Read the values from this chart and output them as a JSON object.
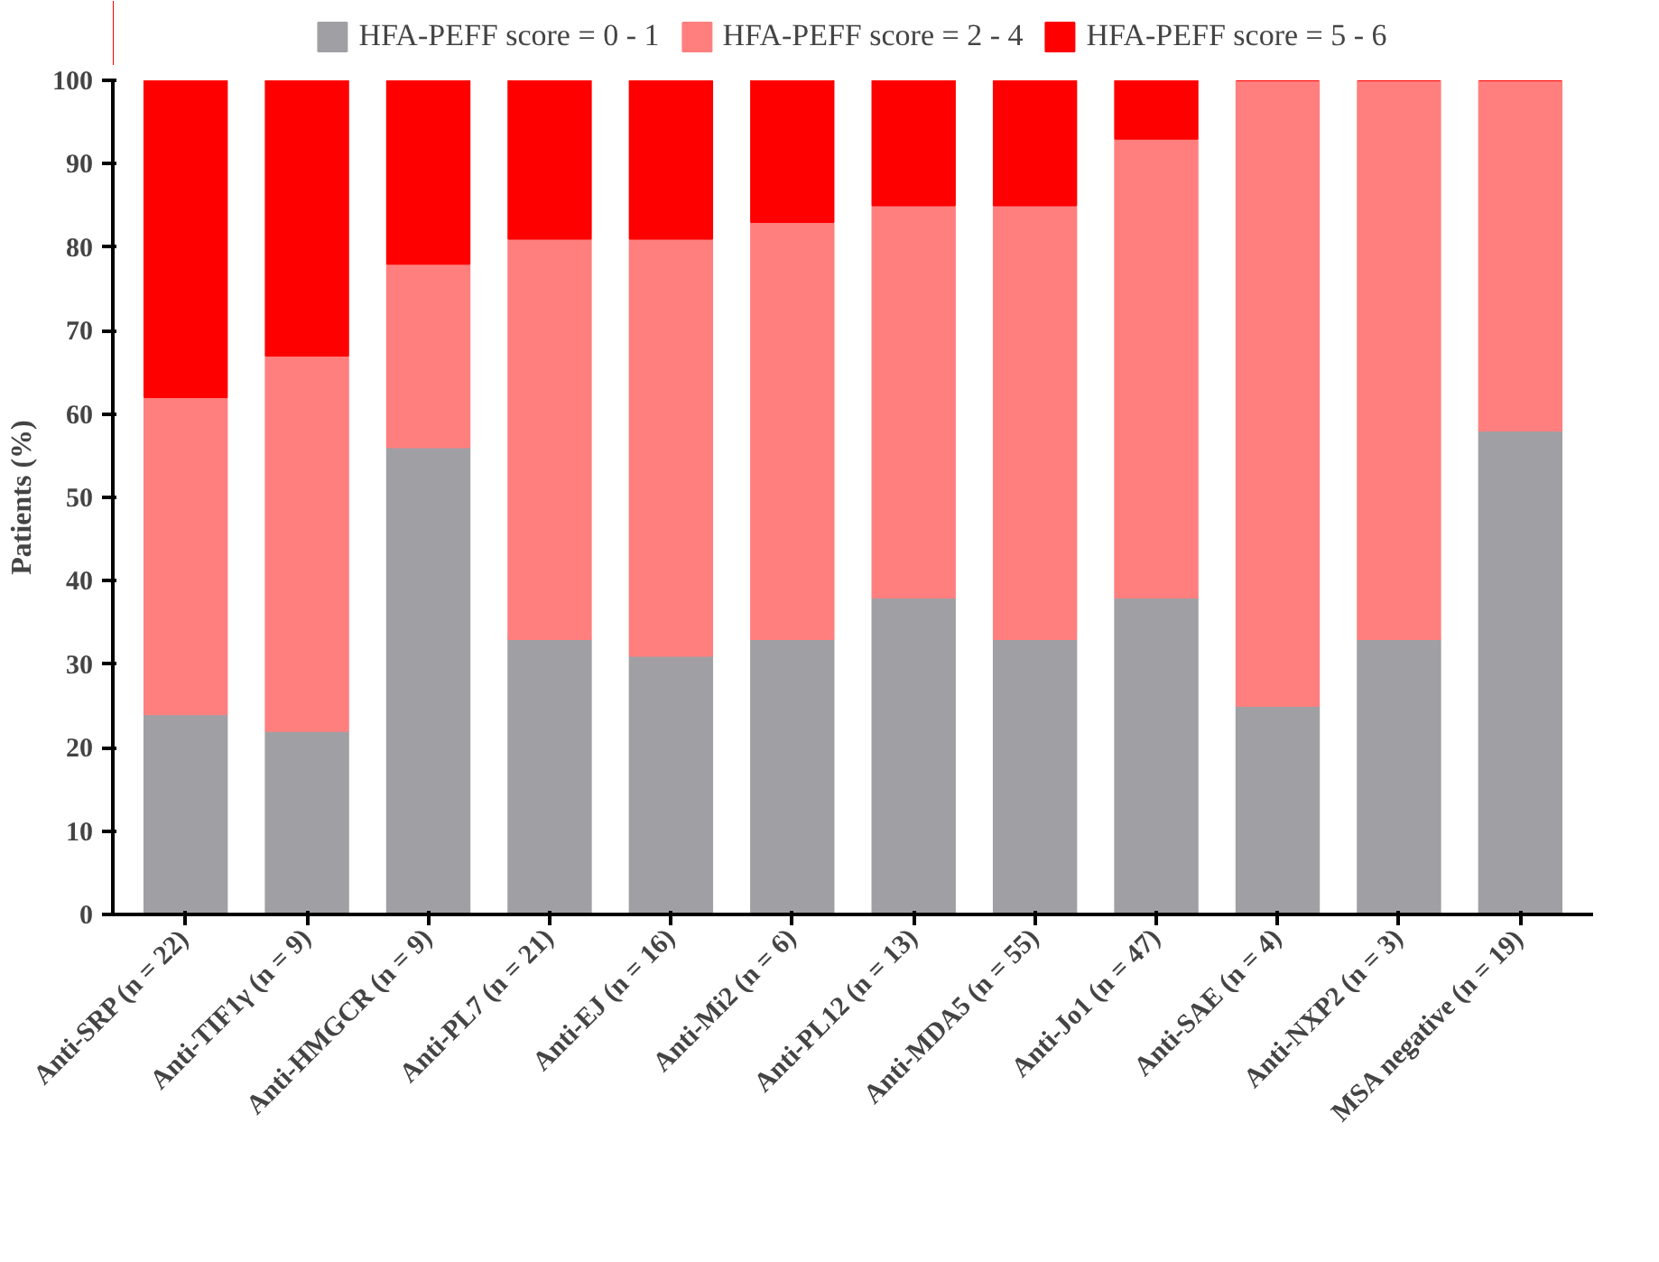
{
  "chart_data": {
    "type": "bar",
    "stacked": true,
    "ylabel": "Patients (%)",
    "categories": [
      "Anti-SRP (n = 22)",
      "Anti-TIF1γ (n = 9)",
      "Anti-HMGCR (n = 9)",
      "Anti-PL7 (n = 21)",
      "Anti-EJ (n = 16)",
      "Anti-Mi2 (n = 6)",
      "Anti-PL12 (n = 13)",
      "Anti-MDA5 (n = 55)",
      "Anti-Jo1 (n = 47)",
      "Anti-SAE (n = 4)",
      "Anti-NXP2 (n = 3)",
      "MSA negative (n = 19)"
    ],
    "series": [
      {
        "name": "HFA-PEFF score = 0 - 1",
        "color": "#a0a0a4",
        "values": [
          24,
          22,
          56,
          33,
          31,
          33,
          38,
          33,
          38,
          25,
          33,
          58
        ]
      },
      {
        "name": "HFA-PEFF score = 2 - 4",
        "color": "#ff7f7f",
        "values": [
          38,
          45,
          22,
          48,
          50,
          50,
          47,
          52,
          55,
          75,
          67,
          42
        ]
      },
      {
        "name": "HFA-PEFF score = 5 - 6",
        "color": "#ff0000",
        "values": [
          38,
          33,
          22,
          19,
          19,
          17,
          15,
          15,
          7,
          0,
          0,
          0
        ]
      }
    ],
    "ylim": [
      0,
      100
    ],
    "yticks": [
      0,
      10,
      20,
      30,
      40,
      50,
      60,
      70,
      80,
      90,
      100
    ],
    "grid": false,
    "legend": "top"
  }
}
